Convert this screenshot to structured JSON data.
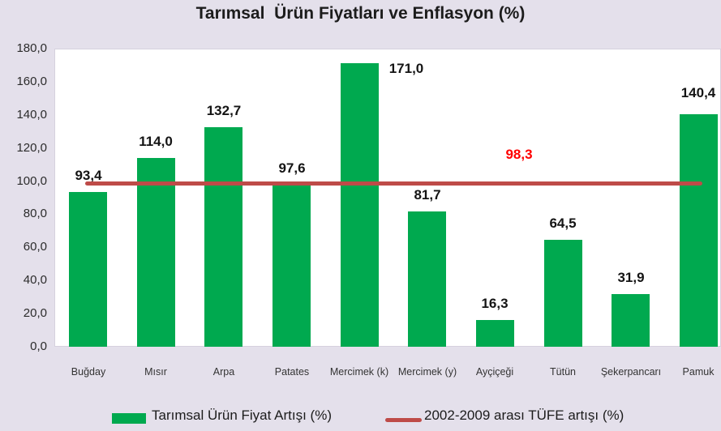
{
  "title": "Tarımsal  Ürün Fiyatları ve Enflasyon (%)",
  "colors": {
    "background": "#E4E0EB",
    "plot_background": "#FFFFFF",
    "bar_green": "#00A94F",
    "line_red": "#BE4B48",
    "inflation_label_red": "#FF0000",
    "text": "#1c1c1c"
  },
  "chart_data": {
    "type": "bar",
    "title": "Tarımsal  Ürün Fiyatları ve Enflasyon (%)",
    "categories": [
      "Buğday",
      "Mısır",
      "Arpa",
      "Patates",
      "Mercimek (k)",
      "Mercimek (y)",
      "Ayçiçeği",
      "Tütün",
      "Şekerpancarı",
      "Pamuk"
    ],
    "series": [
      {
        "name": "Tarımsal Ürün Fiyat Artışı (%)",
        "type": "bar",
        "color": "#00A94F",
        "values": [
          93.4,
          114.0,
          132.7,
          97.6,
          171.0,
          81.7,
          16.3,
          64.5,
          31.9,
          140.4
        ],
        "labels": [
          "93,4",
          "114,0",
          "132,7",
          "97,6",
          "171,0",
          "81,7",
          "16,3",
          "64,5",
          "31,9",
          "140,4"
        ],
        "label_offsets": [
          [
            0,
            0
          ],
          [
            0,
            0
          ],
          [
            0,
            0
          ],
          [
            0,
            0
          ],
          [
            58,
            27
          ],
          [
            0,
            0
          ],
          [
            0,
            0
          ],
          [
            0,
            0
          ],
          [
            0,
            0
          ],
          [
            0,
            -6
          ]
        ]
      },
      {
        "name": "2002-2009 arası TÜFE artışı (%)",
        "type": "line",
        "color": "#BE4B48",
        "value": 98.3,
        "label": "98,3"
      }
    ],
    "xlabel": "",
    "ylabel": "",
    "ylim": [
      0,
      180
    ],
    "ytick_step": 20,
    "yticks": [
      "180,0",
      "160,0",
      "140,0",
      "120,0",
      "100,0",
      "80,0",
      "60,0",
      "40,0",
      "20,0",
      "0,0"
    ],
    "ytick_values": [
      180,
      160,
      140,
      120,
      100,
      80,
      60,
      40,
      20,
      0
    ],
    "grid": false,
    "legend_position": "bottom"
  },
  "legend": {
    "bar_series_label": "Tarımsal Ürün Fiyat Artışı (%)",
    "line_series_label": "2002-2009 arası TÜFE artışı (%)"
  }
}
